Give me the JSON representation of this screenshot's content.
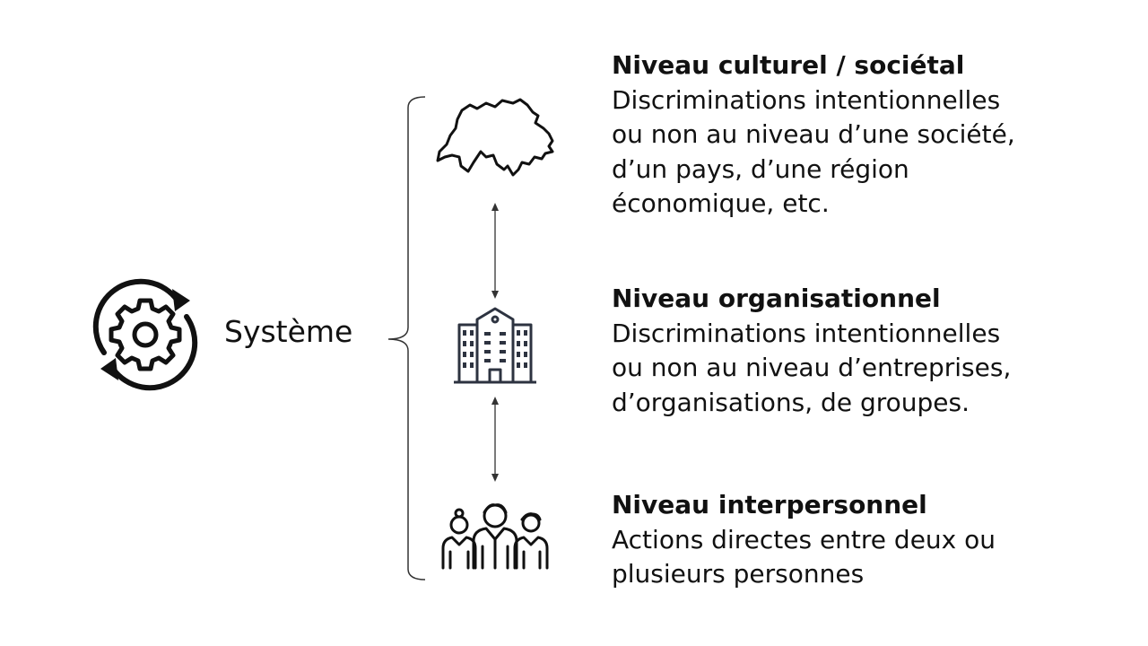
{
  "system": {
    "label": "Système"
  },
  "levels": [
    {
      "title": "Niveau culturel / sociétal",
      "description": "Discriminations intentionnelles\nou non au niveau d’une société,\nd’un pays, d’une région\néconomique, etc.",
      "icon": "switzerland-map-icon"
    },
    {
      "title": "Niveau organisationnel",
      "description": "Discriminations intentionnelles\nou non au niveau d’entreprises,\nd’organisations, de groupes.",
      "icon": "building-icon"
    },
    {
      "title": "Niveau interpersonnel",
      "description": "Actions directes entre deux ou\nplusieurs personnes",
      "icon": "people-group-icon"
    }
  ],
  "colors": {
    "icon": "#2d3340",
    "text": "#111111",
    "line": "#333333"
  }
}
